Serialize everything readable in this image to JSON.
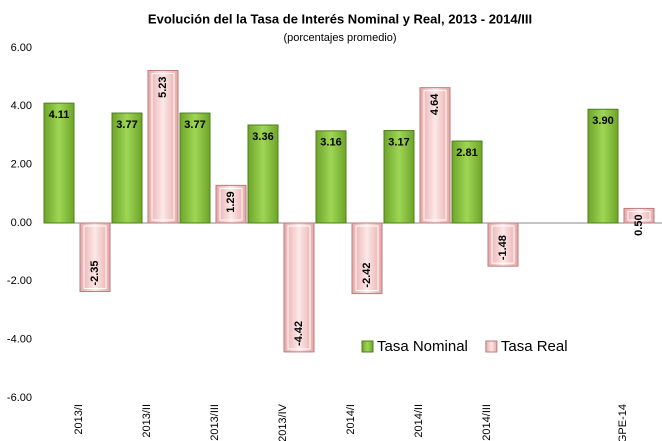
{
  "chart_data": {
    "type": "bar",
    "title": "Evolución del la Tasa de Interés Nominal y Real, 2013 - 2014/III",
    "subtitle": "(porcentajes promedio)",
    "categories": [
      "2013/I",
      "2013/II",
      "2013/III",
      "2013/IV",
      "2014/I",
      "2014/II",
      "2014/III",
      null,
      "GPE-14"
    ],
    "series": [
      {
        "name": "Tasa Nominal",
        "color": "#8cc63e",
        "values": [
          4.11,
          3.77,
          3.77,
          3.36,
          3.16,
          3.17,
          2.81,
          null,
          3.9
        ],
        "value_labels": [
          "4.11",
          "3.77",
          "3.77",
          "3.36",
          "3.16",
          "3.17",
          "2.81",
          null,
          "3.90"
        ]
      },
      {
        "name": "Tasa Real",
        "color": "#f5c9c9",
        "values": [
          -2.35,
          5.23,
          1.29,
          -4.42,
          -2.42,
          4.64,
          -1.48,
          null,
          0.5
        ],
        "value_labels": [
          "-2.35",
          "5.23",
          "1.29",
          "-4.42",
          "-2.42",
          "4.64",
          "-1.48",
          null,
          "0.50"
        ]
      }
    ],
    "ylim": [
      -6,
      6
    ],
    "yticks": [
      {
        "value": -6,
        "label": "-6.00"
      },
      {
        "value": -4,
        "label": "-4.00"
      },
      {
        "value": -2,
        "label": "-2.00"
      },
      {
        "value": 0,
        "label": "0.00"
      },
      {
        "value": 2,
        "label": "2.00"
      },
      {
        "value": 4,
        "label": "4.00"
      },
      {
        "value": 6,
        "label": "6.00"
      }
    ]
  }
}
